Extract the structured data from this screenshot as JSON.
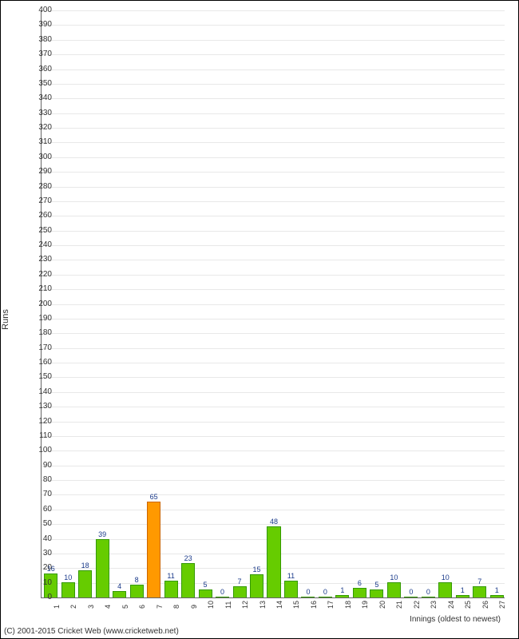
{
  "chart": {
    "type": "bar",
    "ylabel": "Runs",
    "xlabel": "Innings (oldest to newest)",
    "ylim": [
      0,
      400
    ],
    "ytick_step": 10,
    "grid_color": "#e8e8e8",
    "axis_color": "#666666",
    "background_color": "#ffffff",
    "label_fontsize": 10,
    "value_label_color": "#1a3a8a",
    "default_bar_color": "#66cc00",
    "highlight_bar_color": "#ff9900",
    "bar_border_color": "#339900",
    "highlight_border_color": "#cc6600",
    "bar_width_ratio": 0.7,
    "categories": [
      "1",
      "2",
      "3",
      "4",
      "5",
      "6",
      "7",
      "8",
      "9",
      "10",
      "11",
      "12",
      "13",
      "14",
      "15",
      "16",
      "17",
      "18",
      "19",
      "20",
      "21",
      "22",
      "23",
      "24",
      "25",
      "26",
      "27"
    ],
    "values": [
      16,
      10,
      18,
      39,
      4,
      8,
      65,
      11,
      23,
      5,
      0,
      7,
      15,
      48,
      11,
      0,
      0,
      1,
      6,
      5,
      10,
      0,
      0,
      10,
      1,
      7,
      1
    ],
    "highlight_indices": [
      6
    ]
  },
  "copyright": "(C) 2001-2015 Cricket Web (www.cricketweb.net)"
}
